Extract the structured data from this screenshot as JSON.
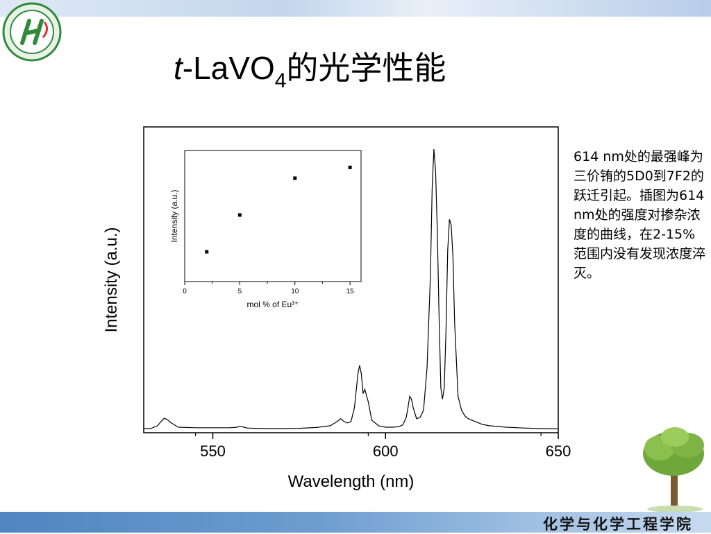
{
  "slide": {
    "title_italic": "t",
    "title_prefix": "-LaVO",
    "title_subscript": "4",
    "title_suffix": "的光学性能",
    "side_text": "614 nm处的最强峰为三价铕的5D0到7F2的跃迁引起。插图为614 nm处的强度对掺杂浓度的曲线，在2-15%范围内没有发现浓度淬灭。",
    "footer": "化学与化学工程学院",
    "accent_color": "#4f86bf",
    "logo_icon": "school-logo-icon",
    "tree_icon": "tree-icon"
  },
  "chart_data": [
    {
      "type": "line",
      "xlabel": "Wavelength (nm)",
      "ylabel": "Intensity (a.u.)",
      "xlim": [
        530,
        650
      ],
      "ylim": [
        0,
        100
      ],
      "xticks": [
        550,
        600,
        650
      ],
      "legend": "none",
      "grid": false,
      "x": [
        530,
        532,
        534,
        535,
        536,
        537,
        538,
        540,
        545,
        550,
        555,
        557,
        558,
        559,
        560,
        562,
        565,
        570,
        575,
        580,
        584,
        586,
        587,
        588,
        589,
        590,
        591,
        592,
        592.5,
        593,
        593.5,
        594,
        595,
        596,
        598,
        600,
        602,
        604,
        605,
        606,
        606.5,
        607,
        607.5,
        608,
        609,
        610,
        611,
        612,
        613,
        613.5,
        614,
        614.5,
        615,
        615.5,
        616,
        616.5,
        617,
        617.5,
        618,
        618.5,
        619,
        619.5,
        620,
        621,
        622,
        623,
        624,
        626,
        628,
        630,
        635,
        640,
        645,
        650
      ],
      "values": [
        0.5,
        0.5,
        1.5,
        3,
        4.2,
        3.5,
        2.5,
        1,
        0.8,
        0.8,
        0.8,
        1,
        1.3,
        1,
        0.7,
        0.6,
        0.5,
        0.5,
        0.6,
        0.9,
        1.5,
        3,
        4,
        3,
        2.5,
        3,
        8,
        20,
        23,
        20,
        13,
        14.5,
        10,
        3.5,
        1.5,
        1,
        1,
        1.2,
        1.8,
        4.5,
        8,
        12,
        11,
        8,
        4,
        4.5,
        7,
        22,
        55,
        86,
        100,
        92,
        70,
        40,
        15,
        11,
        15,
        35,
        64,
        75,
        73,
        62,
        38,
        12,
        7,
        5,
        4,
        3,
        2,
        1.5,
        1,
        0.7,
        0.5,
        0.4
      ]
    },
    {
      "type": "scatter",
      "xlabel": "mol % of Eu³⁺",
      "ylabel": "Intensity (a.u.)",
      "xlim": [
        0,
        16
      ],
      "ylim": [
        0,
        100
      ],
      "xticks": [
        0,
        5,
        10,
        15
      ],
      "x": [
        2,
        5,
        10,
        15
      ],
      "values": [
        16,
        50,
        84,
        94
      ]
    }
  ]
}
